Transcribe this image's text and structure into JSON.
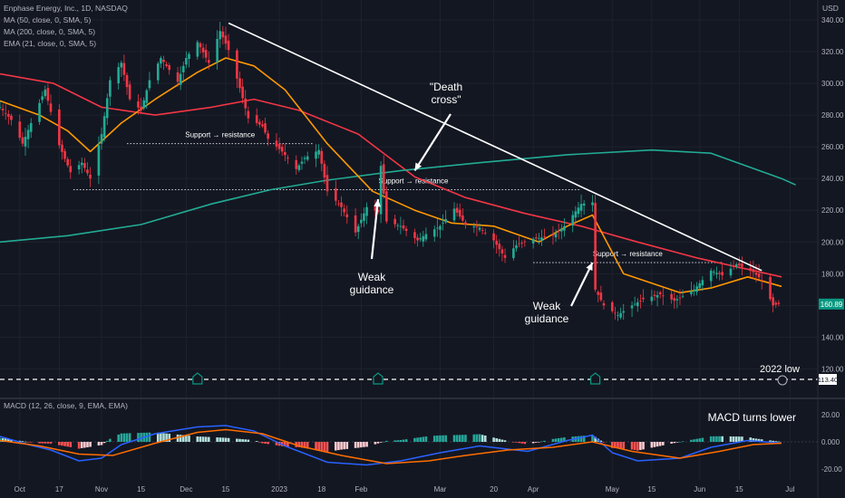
{
  "header": {
    "symbol_line": "Enphase Energy, Inc., 1D, NASDAQ",
    "indicators": [
      "MA (50, close, 0, SMA, 5)",
      "MA (200, close, 0, SMA, 5)",
      "EMA (21, close, 0, SMA, 5)"
    ],
    "macd_label": "MACD (12, 26, close, 9, EMA, EMA)",
    "currency": "USD"
  },
  "chart_data": [
    {
      "type": "candlestick",
      "title": "Enphase Energy, Inc., 1D, NASDAQ",
      "x_ticks": [
        "Oct",
        "17",
        "Nov",
        "15",
        "Dec",
        "15",
        "2023",
        "18",
        "Feb",
        "Mar",
        "20",
        "Apr",
        "May",
        "15",
        "Jun",
        "15",
        "Jul"
      ],
      "x_range": [
        "2022-09-26",
        "2023-07-05"
      ],
      "y_ticks": [
        120,
        140,
        160,
        180,
        200,
        220,
        240,
        260,
        280,
        300,
        320,
        340
      ],
      "ylim": [
        113,
        343
      ],
      "last_price": "160.89",
      "low_line": {
        "value": "113.40",
        "label": "2022 low"
      },
      "close_path": [
        [
          "2022-09-26",
          285
        ],
        [
          "2022-09-30",
          277
        ],
        [
          "2022-10-04",
          262
        ],
        [
          "2022-10-07",
          275
        ],
        [
          "2022-10-12",
          296
        ],
        [
          "2022-10-17",
          261
        ],
        [
          "2022-10-21",
          244
        ],
        [
          "2022-10-25",
          250
        ],
        [
          "2022-10-28",
          240
        ],
        [
          "2022-11-01",
          268
        ],
        [
          "2022-11-04",
          302
        ],
        [
          "2022-11-08",
          313
        ],
        [
          "2022-11-11",
          290
        ],
        [
          "2022-11-15",
          283
        ],
        [
          "2022-11-18",
          302
        ],
        [
          "2022-11-22",
          316
        ],
        [
          "2022-11-28",
          301
        ],
        [
          "2022-12-01",
          316
        ],
        [
          "2022-12-05",
          326
        ],
        [
          "2022-12-09",
          313
        ],
        [
          "2022-12-13",
          333
        ],
        [
          "2022-12-16",
          321
        ],
        [
          "2022-12-20",
          297
        ],
        [
          "2022-12-23",
          278
        ],
        [
          "2022-12-28",
          273
        ],
        [
          "2022-12-30",
          265
        ],
        [
          "2023-01-04",
          257
        ],
        [
          "2023-01-09",
          246
        ],
        [
          "2023-01-12",
          253
        ],
        [
          "2023-01-17",
          258
        ],
        [
          "2023-01-20",
          232
        ],
        [
          "2023-01-25",
          222
        ],
        [
          "2023-01-30",
          206
        ],
        [
          "2023-02-03",
          222
        ],
        [
          "2023-02-07",
          219
        ],
        [
          "2023-02-08",
          248
        ],
        [
          "2023-02-10",
          213
        ],
        [
          "2023-02-15",
          210
        ],
        [
          "2023-02-21",
          201
        ],
        [
          "2023-02-24",
          205
        ],
        [
          "2023-03-01",
          210
        ],
        [
          "2023-03-06",
          221
        ],
        [
          "2023-03-10",
          211
        ],
        [
          "2023-03-15",
          209
        ],
        [
          "2023-03-20",
          201
        ],
        [
          "2023-03-24",
          190
        ],
        [
          "2023-03-28",
          198
        ],
        [
          "2023-04-03",
          202
        ],
        [
          "2023-04-10",
          204
        ],
        [
          "2023-04-14",
          210
        ],
        [
          "2023-04-20",
          224
        ],
        [
          "2023-04-24",
          225
        ],
        [
          "2023-04-25",
          170
        ],
        [
          "2023-04-28",
          160
        ],
        [
          "2023-05-03",
          154
        ],
        [
          "2023-05-08",
          160
        ],
        [
          "2023-05-12",
          164
        ],
        [
          "2023-05-18",
          167
        ],
        [
          "2023-05-23",
          163
        ],
        [
          "2023-05-30",
          170
        ],
        [
          "2023-06-05",
          182
        ],
        [
          "2023-06-09",
          179
        ],
        [
          "2023-06-14",
          186
        ],
        [
          "2023-06-20",
          181
        ],
        [
          "2023-06-23",
          176
        ],
        [
          "2023-06-27",
          160
        ],
        [
          "2023-06-29",
          161
        ]
      ],
      "series": [
        {
          "name": "MA (50, close, 0, SMA, 5)",
          "color": "#f23645",
          "points": [
            [
              "2022-09-26",
              306
            ],
            [
              "2022-10-15",
              300
            ],
            [
              "2022-11-01",
              285
            ],
            [
              "2022-11-20",
              280
            ],
            [
              "2022-12-10",
              285
            ],
            [
              "2022-12-25",
              290
            ],
            [
              "2023-01-10",
              283
            ],
            [
              "2023-01-31",
              268
            ],
            [
              "2023-02-20",
              241
            ],
            [
              "2023-03-10",
              228
            ],
            [
              "2023-03-31",
              218
            ],
            [
              "2023-04-20",
              210
            ],
            [
              "2023-05-10",
              200
            ],
            [
              "2023-05-31",
              190
            ],
            [
              "2023-06-30",
              178
            ]
          ]
        },
        {
          "name": "MA (200, close, 0, SMA, 5)",
          "color": "#22ab94",
          "points": [
            [
              "2022-09-26",
              200
            ],
            [
              "2022-10-20",
              204
            ],
            [
              "2022-11-15",
              211
            ],
            [
              "2022-12-10",
              224
            ],
            [
              "2022-12-31",
              233
            ],
            [
              "2023-01-20",
              239
            ],
            [
              "2023-02-15",
              245
            ],
            [
              "2023-03-15",
              250
            ],
            [
              "2023-04-15",
              255
            ],
            [
              "2023-05-15",
              258
            ],
            [
              "2023-06-05",
              256
            ],
            [
              "2023-06-30",
              240
            ],
            [
              "2023-07-05",
              236
            ]
          ]
        },
        {
          "name": "EMA (21, close, 0, SMA, 5)",
          "color": "#ff9800",
          "points": [
            [
              "2022-09-26",
              289
            ],
            [
              "2022-10-10",
              280
            ],
            [
              "2022-10-20",
              270
            ],
            [
              "2022-10-28",
              257
            ],
            [
              "2022-11-08",
              275
            ],
            [
              "2022-11-20",
              290
            ],
            [
              "2022-12-05",
              307
            ],
            [
              "2022-12-15",
              316
            ],
            [
              "2022-12-25",
              311
            ],
            [
              "2023-01-05",
              296
            ],
            [
              "2023-01-20",
              262
            ],
            [
              "2023-02-05",
              232
            ],
            [
              "2023-02-20",
              220
            ],
            [
              "2023-03-05",
              212
            ],
            [
              "2023-03-20",
              210
            ],
            [
              "2023-04-05",
              200
            ],
            [
              "2023-04-15",
              210
            ],
            [
              "2023-04-24",
              217
            ],
            [
              "2023-05-05",
              180
            ],
            [
              "2023-05-25",
              168
            ],
            [
              "2023-06-05",
              171
            ],
            [
              "2023-06-18",
              178
            ],
            [
              "2023-06-30",
              172
            ]
          ]
        }
      ],
      "annotations": [
        {
          "text": "\"Death cross\"",
          "points_to": [
            "2023-02-20",
            245
          ]
        },
        {
          "text": "Weak guidance",
          "points_to": [
            "2023-02-07",
            227
          ]
        },
        {
          "text": "Weak guidance",
          "points_to": [
            "2023-04-24",
            187
          ]
        },
        {
          "text": "Support → resistance",
          "level": 262,
          "from": "2022-11-10",
          "to": "2023-01-15"
        },
        {
          "text": "Support → resistance",
          "level": 233,
          "from": "2022-10-22",
          "to": "2023-04-20"
        },
        {
          "text": "Support → resistance",
          "level": 187,
          "from": "2023-04-03",
          "to": "2023-06-09"
        }
      ],
      "trendline": {
        "from": [
          "2022-12-16",
          338
        ],
        "to": [
          "2023-06-23",
          182
        ]
      },
      "event_markers": [
        "2022-12-05",
        "2023-02-07",
        "2023-04-25"
      ]
    },
    {
      "type": "macd",
      "title": "MACD (12, 26, close, 9, EMA, EMA)",
      "y_ticks": [
        "20.00",
        "0.000",
        "-20.00"
      ],
      "ylim": [
        -25,
        25
      ],
      "annotation": "MACD turns lower",
      "macd_path": [
        [
          "2022-09-26",
          4
        ],
        [
          "2022-10-06",
          -2
        ],
        [
          "2022-10-14",
          -6
        ],
        [
          "2022-10-24",
          -14
        ],
        [
          "2022-11-01",
          -12
        ],
        [
          "2022-11-08",
          -2
        ],
        [
          "2022-11-20",
          6
        ],
        [
          "2022-12-05",
          11
        ],
        [
          "2022-12-15",
          12
        ],
        [
          "2022-12-25",
          8
        ],
        [
          "2023-01-05",
          -3
        ],
        [
          "2023-01-20",
          -15
        ],
        [
          "2023-02-03",
          -17
        ],
        [
          "2023-02-15",
          -14
        ],
        [
          "2023-03-01",
          -8
        ],
        [
          "2023-03-15",
          -3
        ],
        [
          "2023-04-01",
          -7
        ],
        [
          "2023-04-15",
          1
        ],
        [
          "2023-04-24",
          5
        ],
        [
          "2023-05-01",
          -8
        ],
        [
          "2023-05-10",
          -14
        ],
        [
          "2023-05-25",
          -12
        ],
        [
          "2023-06-05",
          -4
        ],
        [
          "2023-06-18",
          1
        ],
        [
          "2023-06-30",
          -1
        ]
      ],
      "signal_path": [
        [
          "2022-09-26",
          1
        ],
        [
          "2022-10-10",
          -3
        ],
        [
          "2022-10-24",
          -9
        ],
        [
          "2022-11-05",
          -10
        ],
        [
          "2022-11-20",
          -1
        ],
        [
          "2022-12-05",
          7
        ],
        [
          "2022-12-15",
          9
        ],
        [
          "2022-12-28",
          6
        ],
        [
          "2023-01-10",
          -3
        ],
        [
          "2023-01-25",
          -10
        ],
        [
          "2023-02-10",
          -16
        ],
        [
          "2023-02-25",
          -14
        ],
        [
          "2023-03-10",
          -10
        ],
        [
          "2023-03-25",
          -6
        ],
        [
          "2023-04-10",
          -4
        ],
        [
          "2023-04-24",
          0
        ],
        [
          "2023-05-08",
          -7
        ],
        [
          "2023-05-25",
          -12
        ],
        [
          "2023-06-08",
          -7
        ],
        [
          "2023-06-20",
          -2
        ],
        [
          "2023-06-30",
          -1
        ]
      ]
    }
  ]
}
